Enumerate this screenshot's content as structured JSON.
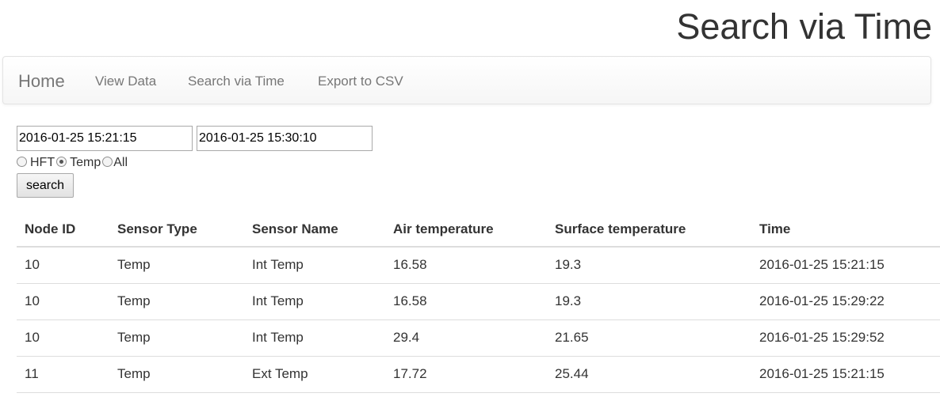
{
  "page": {
    "title": "Search via Time"
  },
  "navbar": {
    "brand": "Home",
    "links": [
      "View Data",
      "Search via Time",
      "Export to CSV"
    ]
  },
  "search_form": {
    "start_time": "2016-01-25 15:21:15",
    "end_time": "2016-01-25 15:30:10",
    "options": [
      {
        "label": "HFT",
        "checked": false
      },
      {
        "label": "Temp",
        "checked": true
      },
      {
        "label": "All",
        "checked": false
      }
    ],
    "button_label": "search"
  },
  "table": {
    "headers": [
      "Node ID",
      "Sensor Type",
      "Sensor Name",
      "Air temperature",
      "Surface temperature",
      "Time"
    ],
    "rows": [
      [
        "10",
        "Temp",
        "Int Temp",
        "16.58",
        "19.3",
        "2016-01-25 15:21:15"
      ],
      [
        "10",
        "Temp",
        "Int Temp",
        "16.58",
        "19.3",
        "2016-01-25 15:29:22"
      ],
      [
        "10",
        "Temp",
        "Int Temp",
        "29.4",
        "21.65",
        "2016-01-25 15:29:52"
      ],
      [
        "11",
        "Temp",
        "Ext Temp",
        "17.72",
        "25.44",
        "2016-01-25 15:21:15"
      ]
    ]
  }
}
